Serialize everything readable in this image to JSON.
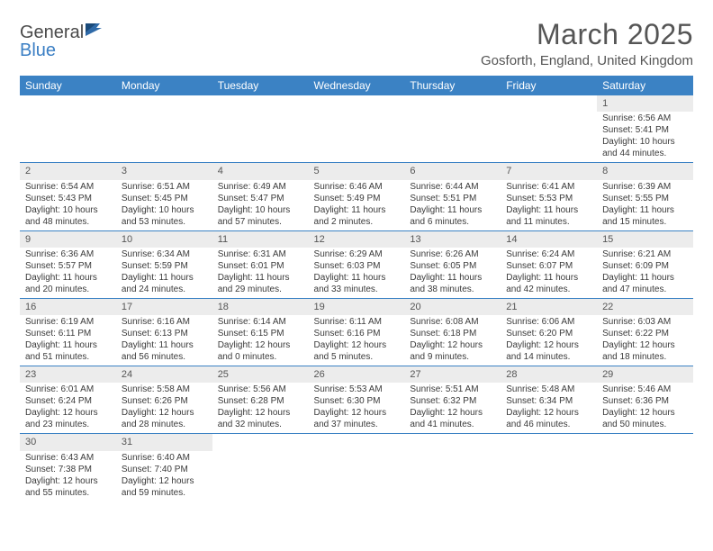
{
  "logo": {
    "part1": "General",
    "part2": "Blue"
  },
  "title": "March 2025",
  "location": "Gosforth, England, United Kingdom",
  "colors": {
    "header_bg": "#3b82c4",
    "header_text": "#ffffff",
    "daynum_bg": "#ececec",
    "text": "#3a3a3a",
    "border": "#3b82c4"
  },
  "weekdays": [
    "Sunday",
    "Monday",
    "Tuesday",
    "Wednesday",
    "Thursday",
    "Friday",
    "Saturday"
  ],
  "weeks": [
    [
      null,
      null,
      null,
      null,
      null,
      null,
      {
        "n": "1",
        "sr": "Sunrise: 6:56 AM",
        "ss": "Sunset: 5:41 PM",
        "dl": "Daylight: 10 hours and 44 minutes."
      }
    ],
    [
      {
        "n": "2",
        "sr": "Sunrise: 6:54 AM",
        "ss": "Sunset: 5:43 PM",
        "dl": "Daylight: 10 hours and 48 minutes."
      },
      {
        "n": "3",
        "sr": "Sunrise: 6:51 AM",
        "ss": "Sunset: 5:45 PM",
        "dl": "Daylight: 10 hours and 53 minutes."
      },
      {
        "n": "4",
        "sr": "Sunrise: 6:49 AM",
        "ss": "Sunset: 5:47 PM",
        "dl": "Daylight: 10 hours and 57 minutes."
      },
      {
        "n": "5",
        "sr": "Sunrise: 6:46 AM",
        "ss": "Sunset: 5:49 PM",
        "dl": "Daylight: 11 hours and 2 minutes."
      },
      {
        "n": "6",
        "sr": "Sunrise: 6:44 AM",
        "ss": "Sunset: 5:51 PM",
        "dl": "Daylight: 11 hours and 6 minutes."
      },
      {
        "n": "7",
        "sr": "Sunrise: 6:41 AM",
        "ss": "Sunset: 5:53 PM",
        "dl": "Daylight: 11 hours and 11 minutes."
      },
      {
        "n": "8",
        "sr": "Sunrise: 6:39 AM",
        "ss": "Sunset: 5:55 PM",
        "dl": "Daylight: 11 hours and 15 minutes."
      }
    ],
    [
      {
        "n": "9",
        "sr": "Sunrise: 6:36 AM",
        "ss": "Sunset: 5:57 PM",
        "dl": "Daylight: 11 hours and 20 minutes."
      },
      {
        "n": "10",
        "sr": "Sunrise: 6:34 AM",
        "ss": "Sunset: 5:59 PM",
        "dl": "Daylight: 11 hours and 24 minutes."
      },
      {
        "n": "11",
        "sr": "Sunrise: 6:31 AM",
        "ss": "Sunset: 6:01 PM",
        "dl": "Daylight: 11 hours and 29 minutes."
      },
      {
        "n": "12",
        "sr": "Sunrise: 6:29 AM",
        "ss": "Sunset: 6:03 PM",
        "dl": "Daylight: 11 hours and 33 minutes."
      },
      {
        "n": "13",
        "sr": "Sunrise: 6:26 AM",
        "ss": "Sunset: 6:05 PM",
        "dl": "Daylight: 11 hours and 38 minutes."
      },
      {
        "n": "14",
        "sr": "Sunrise: 6:24 AM",
        "ss": "Sunset: 6:07 PM",
        "dl": "Daylight: 11 hours and 42 minutes."
      },
      {
        "n": "15",
        "sr": "Sunrise: 6:21 AM",
        "ss": "Sunset: 6:09 PM",
        "dl": "Daylight: 11 hours and 47 minutes."
      }
    ],
    [
      {
        "n": "16",
        "sr": "Sunrise: 6:19 AM",
        "ss": "Sunset: 6:11 PM",
        "dl": "Daylight: 11 hours and 51 minutes."
      },
      {
        "n": "17",
        "sr": "Sunrise: 6:16 AM",
        "ss": "Sunset: 6:13 PM",
        "dl": "Daylight: 11 hours and 56 minutes."
      },
      {
        "n": "18",
        "sr": "Sunrise: 6:14 AM",
        "ss": "Sunset: 6:15 PM",
        "dl": "Daylight: 12 hours and 0 minutes."
      },
      {
        "n": "19",
        "sr": "Sunrise: 6:11 AM",
        "ss": "Sunset: 6:16 PM",
        "dl": "Daylight: 12 hours and 5 minutes."
      },
      {
        "n": "20",
        "sr": "Sunrise: 6:08 AM",
        "ss": "Sunset: 6:18 PM",
        "dl": "Daylight: 12 hours and 9 minutes."
      },
      {
        "n": "21",
        "sr": "Sunrise: 6:06 AM",
        "ss": "Sunset: 6:20 PM",
        "dl": "Daylight: 12 hours and 14 minutes."
      },
      {
        "n": "22",
        "sr": "Sunrise: 6:03 AM",
        "ss": "Sunset: 6:22 PM",
        "dl": "Daylight: 12 hours and 18 minutes."
      }
    ],
    [
      {
        "n": "23",
        "sr": "Sunrise: 6:01 AM",
        "ss": "Sunset: 6:24 PM",
        "dl": "Daylight: 12 hours and 23 minutes."
      },
      {
        "n": "24",
        "sr": "Sunrise: 5:58 AM",
        "ss": "Sunset: 6:26 PM",
        "dl": "Daylight: 12 hours and 28 minutes."
      },
      {
        "n": "25",
        "sr": "Sunrise: 5:56 AM",
        "ss": "Sunset: 6:28 PM",
        "dl": "Daylight: 12 hours and 32 minutes."
      },
      {
        "n": "26",
        "sr": "Sunrise: 5:53 AM",
        "ss": "Sunset: 6:30 PM",
        "dl": "Daylight: 12 hours and 37 minutes."
      },
      {
        "n": "27",
        "sr": "Sunrise: 5:51 AM",
        "ss": "Sunset: 6:32 PM",
        "dl": "Daylight: 12 hours and 41 minutes."
      },
      {
        "n": "28",
        "sr": "Sunrise: 5:48 AM",
        "ss": "Sunset: 6:34 PM",
        "dl": "Daylight: 12 hours and 46 minutes."
      },
      {
        "n": "29",
        "sr": "Sunrise: 5:46 AM",
        "ss": "Sunset: 6:36 PM",
        "dl": "Daylight: 12 hours and 50 minutes."
      }
    ],
    [
      {
        "n": "30",
        "sr": "Sunrise: 6:43 AM",
        "ss": "Sunset: 7:38 PM",
        "dl": "Daylight: 12 hours and 55 minutes."
      },
      {
        "n": "31",
        "sr": "Sunrise: 6:40 AM",
        "ss": "Sunset: 7:40 PM",
        "dl": "Daylight: 12 hours and 59 minutes."
      },
      null,
      null,
      null,
      null,
      null
    ]
  ]
}
